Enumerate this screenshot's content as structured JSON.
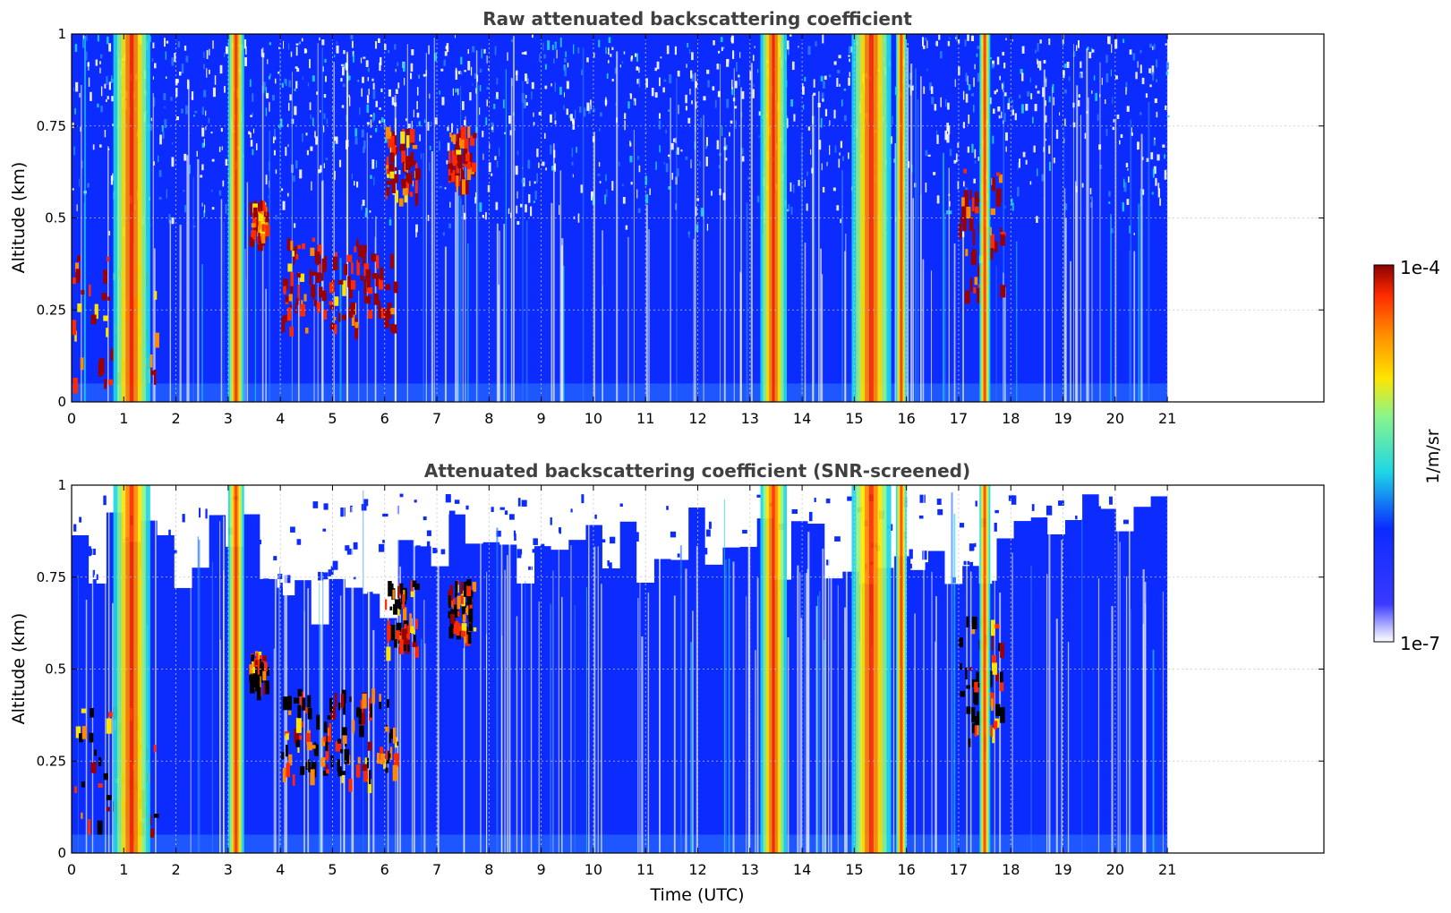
{
  "colors": {
    "blue": "#0b2bff",
    "light_blue": "#2f7bff",
    "cyan": "#1ed6e6",
    "green": "#8bf58a",
    "yellow": "#ffe400",
    "orange": "#ff8a00",
    "red": "#ff2a00",
    "dark_red": "#9b0000",
    "black": "#000000",
    "white": "#ffffff",
    "title_gray": "#404040",
    "grid_gray": "#c8c8c8"
  },
  "colorbar": {
    "min_label": "1e-7",
    "max_label": "1e-4",
    "unit_label": "1/m/sr",
    "scale": "log",
    "colormap": "jet"
  },
  "chart_data": [
    {
      "type": "heatmap",
      "title": "Raw attenuated backscattering coefficient",
      "xlabel": "",
      "ylabel": "Altitude (km)",
      "xlim": [
        0,
        24
      ],
      "ylim": [
        0,
        1
      ],
      "x_ticks": [
        0,
        1,
        2,
        3,
        4,
        5,
        6,
        7,
        8,
        9,
        10,
        11,
        12,
        13,
        14,
        15,
        16,
        17,
        18,
        19,
        20,
        21
      ],
      "y_ticks": [
        0,
        0.25,
        0.5,
        0.75,
        1
      ],
      "y_tick_labels": [
        "0",
        "0.25",
        "0.5",
        "0.75",
        "1"
      ],
      "grid": true,
      "data_extent_x": [
        0,
        21
      ],
      "screened": false,
      "features": [
        {
          "kind": "low_cloud",
          "x": [
            0,
            1.6
          ],
          "y": [
            0.05,
            0.4
          ]
        },
        {
          "kind": "column",
          "x": [
            0.8,
            1.5
          ]
        },
        {
          "kind": "column",
          "x": [
            3.0,
            3.3
          ]
        },
        {
          "kind": "cloud_patch",
          "x": [
            3.4,
            3.7
          ],
          "y": [
            0.45,
            0.55
          ]
        },
        {
          "kind": "cloud_layer",
          "x": [
            4.0,
            6.2
          ],
          "y": [
            0.2,
            0.45
          ]
        },
        {
          "kind": "cloud_patch",
          "x": [
            6.0,
            6.6
          ],
          "y": [
            0.55,
            0.75
          ]
        },
        {
          "kind": "cloud_patch",
          "x": [
            7.2,
            7.7
          ],
          "y": [
            0.6,
            0.75
          ]
        },
        {
          "kind": "column",
          "x": [
            13.2,
            13.7
          ]
        },
        {
          "kind": "column",
          "x": [
            14.95,
            15.7
          ]
        },
        {
          "kind": "column",
          "x": [
            15.8,
            16.0
          ]
        },
        {
          "kind": "cloud_patch",
          "x": [
            17.0,
            17.8
          ],
          "y": [
            0.3,
            0.65
          ]
        },
        {
          "kind": "column",
          "x": [
            17.4,
            17.6
          ]
        }
      ]
    },
    {
      "type": "heatmap",
      "title": "Attenuated backscattering coefficient (SNR-screened)",
      "xlabel": "Time (UTC)",
      "ylabel": "Altitude (km)",
      "xlim": [
        0,
        24
      ],
      "ylim": [
        0,
        1
      ],
      "x_ticks": [
        0,
        1,
        2,
        3,
        4,
        5,
        6,
        7,
        8,
        9,
        10,
        11,
        12,
        13,
        14,
        15,
        16,
        17,
        18,
        19,
        20,
        21
      ],
      "y_ticks": [
        0,
        0.25,
        0.5,
        0.75,
        1
      ],
      "y_tick_labels": [
        "0",
        "0.25",
        "0.5",
        "0.75",
        "1"
      ],
      "grid": true,
      "data_extent_x": [
        0,
        21
      ],
      "screened": true,
      "features": [
        {
          "kind": "low_cloud",
          "x": [
            0,
            1.6
          ],
          "y": [
            0.05,
            0.4
          ]
        },
        {
          "kind": "column",
          "x": [
            0.8,
            1.5
          ]
        },
        {
          "kind": "column",
          "x": [
            3.0,
            3.3
          ]
        },
        {
          "kind": "cloud_patch",
          "x": [
            3.4,
            3.7
          ],
          "y": [
            0.45,
            0.55
          ]
        },
        {
          "kind": "cloud_layer",
          "x": [
            4.0,
            6.2
          ],
          "y": [
            0.2,
            0.45
          ]
        },
        {
          "kind": "cloud_patch",
          "x": [
            6.0,
            6.6
          ],
          "y": [
            0.55,
            0.75
          ]
        },
        {
          "kind": "cloud_patch",
          "x": [
            7.2,
            7.7
          ],
          "y": [
            0.6,
            0.75
          ]
        },
        {
          "kind": "column",
          "x": [
            13.2,
            13.7
          ]
        },
        {
          "kind": "column",
          "x": [
            14.95,
            15.7
          ]
        },
        {
          "kind": "column",
          "x": [
            15.8,
            16.0
          ]
        },
        {
          "kind": "cloud_patch",
          "x": [
            17.0,
            17.8
          ],
          "y": [
            0.3,
            0.65
          ]
        },
        {
          "kind": "column",
          "x": [
            17.4,
            17.6
          ]
        }
      ]
    }
  ]
}
